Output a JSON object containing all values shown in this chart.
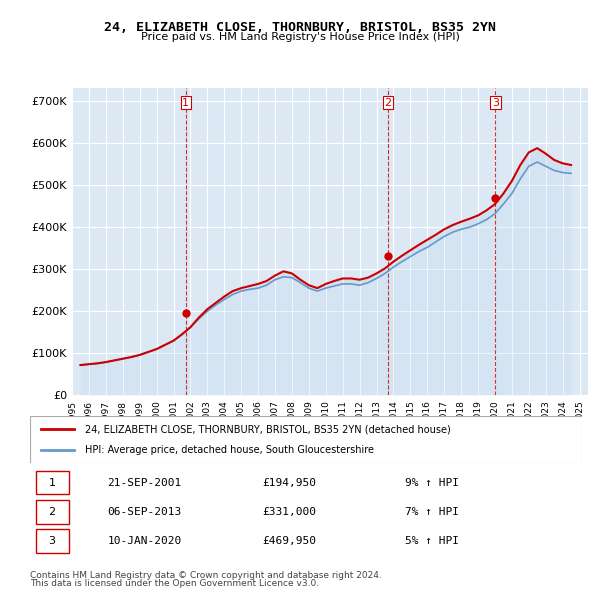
{
  "title": "24, ELIZABETH CLOSE, THORNBURY, BRISTOL, BS35 2YN",
  "subtitle": "Price paid vs. HM Land Registry's House Price Index (HPI)",
  "ylabel": "",
  "ylim": [
    0,
    730000
  ],
  "yticks": [
    0,
    100000,
    200000,
    300000,
    400000,
    500000,
    600000,
    700000
  ],
  "ytick_labels": [
    "£0",
    "£100K",
    "£200K",
    "£300K",
    "£400K",
    "£500K",
    "£600K",
    "£700K"
  ],
  "background_color": "#dce9f5",
  "plot_bg": "#dce9f5",
  "grid_color": "#ffffff",
  "sale_color": "#cc0000",
  "hpi_color": "#6699cc",
  "hpi_fill_color": "#b8d0e8",
  "transactions": [
    {
      "label": "1",
      "date_num": 2001.72,
      "price": 194950
    },
    {
      "label": "2",
      "date_num": 2013.68,
      "price": 331000
    },
    {
      "label": "3",
      "date_num": 2020.03,
      "price": 469950
    }
  ],
  "transaction_rows": [
    {
      "num": "1",
      "date": "21-SEP-2001",
      "price": "£194,950",
      "hpi": "9% ↑ HPI"
    },
    {
      "num": "2",
      "date": "06-SEP-2013",
      "price": "£331,000",
      "hpi": "7% ↑ HPI"
    },
    {
      "num": "3",
      "date": "10-JAN-2020",
      "price": "£469,950",
      "hpi": "5% ↑ HPI"
    }
  ],
  "legend_line1": "24, ELIZABETH CLOSE, THORNBURY, BRISTOL, BS35 2YN (detached house)",
  "legend_line2": "HPI: Average price, detached house, South Gloucestershire",
  "footer1": "Contains HM Land Registry data © Crown copyright and database right 2024.",
  "footer2": "This data is licensed under the Open Government Licence v3.0.",
  "hpi_data": {
    "years": [
      1995.5,
      1996.0,
      1996.5,
      1997.0,
      1997.5,
      1998.0,
      1998.5,
      1999.0,
      1999.5,
      2000.0,
      2000.5,
      2001.0,
      2001.5,
      2002.0,
      2002.5,
      2003.0,
      2003.5,
      2004.0,
      2004.5,
      2005.0,
      2005.5,
      2006.0,
      2006.5,
      2007.0,
      2007.5,
      2008.0,
      2008.5,
      2009.0,
      2009.5,
      2010.0,
      2010.5,
      2011.0,
      2011.5,
      2012.0,
      2012.5,
      2013.0,
      2013.5,
      2014.0,
      2014.5,
      2015.0,
      2015.5,
      2016.0,
      2016.5,
      2017.0,
      2017.5,
      2018.0,
      2018.5,
      2019.0,
      2019.5,
      2020.0,
      2020.5,
      2021.0,
      2021.5,
      2022.0,
      2022.5,
      2023.0,
      2023.5,
      2024.0,
      2024.5
    ],
    "hpi_values": [
      72000,
      74000,
      76000,
      79000,
      83000,
      87000,
      91000,
      96000,
      103000,
      110000,
      120000,
      130000,
      145000,
      162000,
      182000,
      200000,
      215000,
      228000,
      240000,
      248000,
      252000,
      255000,
      262000,
      275000,
      282000,
      280000,
      268000,
      255000,
      248000,
      255000,
      260000,
      265000,
      265000,
      262000,
      268000,
      278000,
      290000,
      305000,
      318000,
      330000,
      342000,
      352000,
      365000,
      378000,
      388000,
      395000,
      400000,
      408000,
      418000,
      432000,
      455000,
      480000,
      515000,
      545000,
      555000,
      545000,
      535000,
      530000,
      528000
    ],
    "sale_values": [
      72000,
      74000,
      76000,
      79000,
      83000,
      87000,
      91000,
      96000,
      103000,
      110000,
      120000,
      130000,
      145000,
      162000,
      185000,
      205000,
      220000,
      235000,
      248000,
      255000,
      260000,
      265000,
      272000,
      285000,
      295000,
      290000,
      275000,
      262000,
      255000,
      265000,
      272000,
      278000,
      278000,
      275000,
      280000,
      290000,
      302000,
      318000,
      332000,
      345000,
      358000,
      370000,
      382000,
      395000,
      405000,
      413000,
      420000,
      428000,
      440000,
      455000,
      480000,
      510000,
      548000,
      578000,
      588000,
      575000,
      560000,
      552000,
      548000
    ]
  }
}
